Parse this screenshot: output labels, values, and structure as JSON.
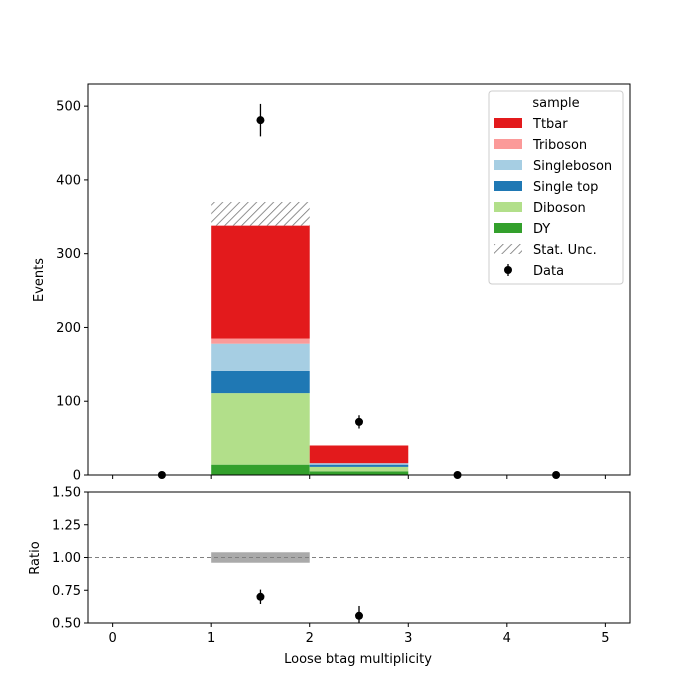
{
  "chart_data": [
    {
      "panel": "main",
      "type": "bar",
      "stacked": true,
      "ylabel": "Events",
      "ylim": [
        0,
        530
      ],
      "yticks": [
        0,
        100,
        200,
        300,
        400,
        500
      ],
      "xlim": [
        -0.25,
        5.25
      ],
      "bin_edges": [
        0,
        1,
        2,
        3,
        4,
        5
      ],
      "grid": false,
      "legend": {
        "title": "sample",
        "position": "top-right",
        "entries": [
          "Ttbar",
          "Triboson",
          "Singleboson",
          "Single top",
          "Diboson",
          "DY",
          "Stat. Unc.",
          "Data"
        ]
      },
      "series": [
        {
          "name": "DY",
          "color": "#33a02c",
          "values": [
            0,
            14,
            5,
            0,
            0
          ]
        },
        {
          "name": "Diboson",
          "color": "#b2df8a",
          "values": [
            0,
            97,
            6,
            0,
            0
          ]
        },
        {
          "name": "Single top",
          "color": "#1f78b4",
          "values": [
            0,
            30,
            3,
            0,
            0
          ]
        },
        {
          "name": "Singleboson",
          "color": "#a6cee3",
          "values": [
            0,
            37,
            2,
            0,
            0
          ]
        },
        {
          "name": "Triboson",
          "color": "#fb9a99",
          "values": [
            0,
            7,
            0,
            0,
            0
          ]
        },
        {
          "name": "Ttbar",
          "color": "#e31a1c",
          "values": [
            0,
            153,
            24,
            0,
            0
          ]
        }
      ],
      "stat_unc": {
        "name": "Stat. Unc.",
        "bins": [
          {
            "bin": 1,
            "low": 338,
            "high": 370
          }
        ]
      },
      "data": {
        "name": "Data",
        "color": "#000000",
        "x": [
          0.5,
          1.5,
          2.5,
          3.5,
          4.5
        ],
        "y": [
          0,
          481,
          72,
          0,
          0
        ],
        "yerr": [
          0,
          22,
          9,
          0,
          0
        ]
      }
    },
    {
      "panel": "ratio",
      "type": "scatter",
      "xlabel": "Loose btag multiplicity",
      "ylabel": "Ratio",
      "ylim": [
        0.5,
        1.5
      ],
      "yticks": [
        "0.50",
        "0.75",
        "1.00",
        "1.25",
        "1.50"
      ],
      "xticks": [
        "0",
        "1",
        "2",
        "3",
        "4",
        "5"
      ],
      "reference_line": 1.0,
      "unc_band": {
        "bin": 1,
        "low": 0.96,
        "high": 1.04,
        "color": "#aaaaaa"
      },
      "x": [
        1.5,
        2.5
      ],
      "y": [
        0.7,
        0.555
      ],
      "yerr": [
        0.055,
        0.075
      ]
    }
  ]
}
